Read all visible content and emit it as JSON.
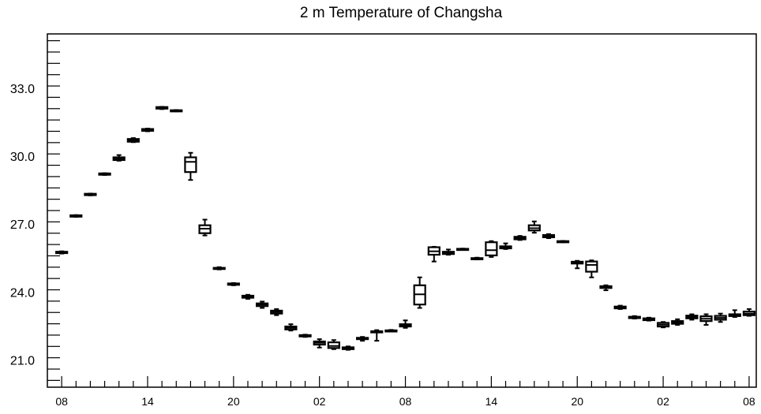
{
  "chart_data": {
    "type": "box",
    "title": "2 m Temperature of Changsha",
    "xlabel": "",
    "ylabel": "",
    "ylim": [
      19.8,
      35.4
    ],
    "yticks": [
      "21.0",
      "24.0",
      "27.0",
      "30.0",
      "33.0"
    ],
    "xticks": [
      "08",
      "14",
      "20",
      "02",
      "08",
      "14",
      "20",
      "02",
      "08"
    ],
    "x_tick_hours": [
      0,
      6,
      12,
      18,
      24,
      30,
      36,
      42,
      48
    ],
    "x_range_hours": [
      -1.0,
      48.5
    ],
    "grid": false,
    "boxes": [
      {
        "hour": 0,
        "min": 25.7,
        "q1": 25.72,
        "median": 25.75,
        "q3": 25.78,
        "max": 25.8
      },
      {
        "hour": 1,
        "min": 27.32,
        "q1": 27.33,
        "median": 27.36,
        "q3": 27.39,
        "max": 27.4
      },
      {
        "hour": 2,
        "min": 28.27,
        "q1": 28.28,
        "median": 28.31,
        "q3": 28.34,
        "max": 28.35
      },
      {
        "hour": 3,
        "min": 29.17,
        "q1": 29.18,
        "median": 29.21,
        "q3": 29.24,
        "max": 29.25
      },
      {
        "hour": 4,
        "min": 29.8,
        "q1": 29.83,
        "median": 29.9,
        "q3": 29.95,
        "max": 30.05
      },
      {
        "hour": 5,
        "min": 30.62,
        "q1": 30.64,
        "median": 30.7,
        "q3": 30.76,
        "max": 30.8
      },
      {
        "hour": 6,
        "min": 31.1,
        "q1": 31.12,
        "median": 31.16,
        "q3": 31.2,
        "max": 31.22
      },
      {
        "hour": 7,
        "min": 32.08,
        "q1": 32.1,
        "median": 32.14,
        "q3": 32.17,
        "max": 32.18
      },
      {
        "hour": 8,
        "min": 31.98,
        "q1": 31.99,
        "median": 32.01,
        "q3": 32.03,
        "max": 32.04
      },
      {
        "hour": 9,
        "min": 28.95,
        "q1": 29.3,
        "median": 29.75,
        "q3": 29.95,
        "max": 30.15
      },
      {
        "hour": 10,
        "min": 26.5,
        "q1": 26.6,
        "median": 26.8,
        "q3": 26.95,
        "max": 27.2
      },
      {
        "hour": 11,
        "min": 25.0,
        "q1": 25.02,
        "median": 25.05,
        "q3": 25.07,
        "max": 25.1
      },
      {
        "hour": 12,
        "min": 24.3,
        "q1": 24.32,
        "median": 24.35,
        "q3": 24.38,
        "max": 24.4
      },
      {
        "hour": 13,
        "min": 23.7,
        "q1": 23.75,
        "median": 23.8,
        "q3": 23.84,
        "max": 23.88
      },
      {
        "hour": 14,
        "min": 23.3,
        "q1": 23.38,
        "median": 23.45,
        "q3": 23.5,
        "max": 23.58
      },
      {
        "hour": 15,
        "min": 22.98,
        "q1": 23.05,
        "median": 23.12,
        "q3": 23.18,
        "max": 23.25
      },
      {
        "hour": 16,
        "min": 22.3,
        "q1": 22.35,
        "median": 22.42,
        "q3": 22.48,
        "max": 22.58
      },
      {
        "hour": 17,
        "min": 22.02,
        "q1": 22.04,
        "median": 22.07,
        "q3": 22.1,
        "max": 22.12
      },
      {
        "hour": 18,
        "min": 21.55,
        "q1": 21.68,
        "median": 21.76,
        "q3": 21.82,
        "max": 21.92
      },
      {
        "hour": 19,
        "min": 21.48,
        "q1": 21.53,
        "median": 21.62,
        "q3": 21.78,
        "max": 21.88
      },
      {
        "hour": 20,
        "min": 21.45,
        "q1": 21.48,
        "median": 21.52,
        "q3": 21.56,
        "max": 21.6
      },
      {
        "hour": 21,
        "min": 21.85,
        "q1": 21.92,
        "median": 21.95,
        "q3": 21.98,
        "max": 22.02
      },
      {
        "hour": 22,
        "min": 21.85,
        "q1": 22.22,
        "median": 22.25,
        "q3": 22.27,
        "max": 22.32
      },
      {
        "hour": 23,
        "min": 22.26,
        "q1": 22.27,
        "median": 22.29,
        "q3": 22.31,
        "max": 22.33
      },
      {
        "hour": 24,
        "min": 22.42,
        "q1": 22.48,
        "median": 22.53,
        "q3": 22.58,
        "max": 22.75
      },
      {
        "hour": 25,
        "min": 23.3,
        "q1": 23.45,
        "median": 23.9,
        "q3": 24.3,
        "max": 24.65
      },
      {
        "hour": 26,
        "min": 25.35,
        "q1": 25.65,
        "median": 25.8,
        "q3": 25.98,
        "max": 26.0
      },
      {
        "hour": 27,
        "min": 25.65,
        "q1": 25.68,
        "median": 25.72,
        "q3": 25.78,
        "max": 25.88
      },
      {
        "hour": 28,
        "min": 25.88,
        "q1": 25.89,
        "median": 25.9,
        "q3": 25.91,
        "max": 25.92
      },
      {
        "hour": 29,
        "min": 25.44,
        "q1": 25.46,
        "median": 25.48,
        "q3": 25.5,
        "max": 25.52
      },
      {
        "hour": 30,
        "min": 25.55,
        "q1": 25.62,
        "median": 25.85,
        "q3": 26.2,
        "max": 26.25
      },
      {
        "hour": 31,
        "min": 25.9,
        "q1": 25.93,
        "median": 25.98,
        "q3": 26.02,
        "max": 26.15
      },
      {
        "hour": 32,
        "min": 26.3,
        "q1": 26.33,
        "median": 26.38,
        "q3": 26.44,
        "max": 26.48
      },
      {
        "hour": 33,
        "min": 26.62,
        "q1": 26.72,
        "median": 26.82,
        "q3": 26.95,
        "max": 27.12
      },
      {
        "hour": 34,
        "min": 26.38,
        "q1": 26.42,
        "median": 26.47,
        "q3": 26.52,
        "max": 26.56
      },
      {
        "hour": 35,
        "min": 26.2,
        "q1": 26.21,
        "median": 26.23,
        "q3": 26.25,
        "max": 26.26
      },
      {
        "hour": 36,
        "min": 25.05,
        "q1": 25.26,
        "median": 25.3,
        "q3": 25.34,
        "max": 25.38
      },
      {
        "hour": 37,
        "min": 24.65,
        "q1": 24.9,
        "median": 25.2,
        "q3": 25.35,
        "max": 25.4
      },
      {
        "hour": 38,
        "min": 24.08,
        "q1": 24.18,
        "median": 24.22,
        "q3": 24.26,
        "max": 24.3
      },
      {
        "hour": 39,
        "min": 23.25,
        "q1": 23.28,
        "median": 23.32,
        "q3": 23.36,
        "max": 23.4
      },
      {
        "hour": 40,
        "min": 22.83,
        "q1": 22.85,
        "median": 22.88,
        "q3": 22.91,
        "max": 22.94
      },
      {
        "hour": 41,
        "min": 22.74,
        "q1": 22.76,
        "median": 22.8,
        "q3": 22.84,
        "max": 22.87
      },
      {
        "hour": 42,
        "min": 22.44,
        "q1": 22.48,
        "median": 22.56,
        "q3": 22.64,
        "max": 22.68
      },
      {
        "hour": 43,
        "min": 22.55,
        "q1": 22.6,
        "median": 22.66,
        "q3": 22.72,
        "max": 22.8
      },
      {
        "hour": 44,
        "min": 22.78,
        "q1": 22.84,
        "median": 22.9,
        "q3": 22.96,
        "max": 23.02
      },
      {
        "hour": 45,
        "min": 22.55,
        "q1": 22.72,
        "median": 22.82,
        "q3": 22.93,
        "max": 23.02
      },
      {
        "hour": 46,
        "min": 22.68,
        "q1": 22.78,
        "median": 22.86,
        "q3": 22.95,
        "max": 23.05
      },
      {
        "hour": 47,
        "min": 22.9,
        "q1": 22.94,
        "median": 22.98,
        "q3": 23.02,
        "max": 23.2
      },
      {
        "hour": 48,
        "min": 22.95,
        "q1": 22.98,
        "median": 23.05,
        "q3": 23.14,
        "max": 23.25
      }
    ]
  }
}
